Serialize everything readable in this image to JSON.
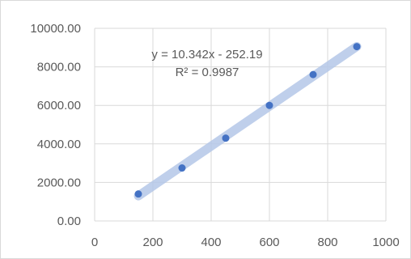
{
  "chart_data": {
    "type": "scatter",
    "title": "",
    "xlabel": "",
    "ylabel": "",
    "xlim": [
      0,
      1000
    ],
    "ylim": [
      0,
      10000
    ],
    "x_ticks": [
      0,
      200,
      400,
      600,
      800,
      1000
    ],
    "x_tick_labels": [
      "0",
      "200",
      "400",
      "600",
      "800",
      "1000"
    ],
    "y_ticks": [
      0,
      2000,
      4000,
      6000,
      8000,
      10000
    ],
    "y_tick_labels": [
      "0.00",
      "2000.00",
      "4000.00",
      "6000.00",
      "8000.00",
      "10000.00"
    ],
    "grid": true,
    "legend": "none",
    "series": [
      {
        "x": [
          150,
          300,
          450,
          600,
          750,
          900
        ],
        "y": [
          1400,
          2750,
          4300,
          6000,
          7600,
          9050
        ]
      }
    ],
    "trendline": {
      "type": "linear",
      "slope": 10.342,
      "intercept": -252.19,
      "x_range": [
        150,
        900
      ],
      "equation": "y = 10.342x - 252.19",
      "r_squared": "R² = 0.9987"
    },
    "colors": {
      "marker": "#4472c4",
      "trendline": "#b4c7e7",
      "grid": "#d9d9d9",
      "text": "#595959"
    }
  }
}
